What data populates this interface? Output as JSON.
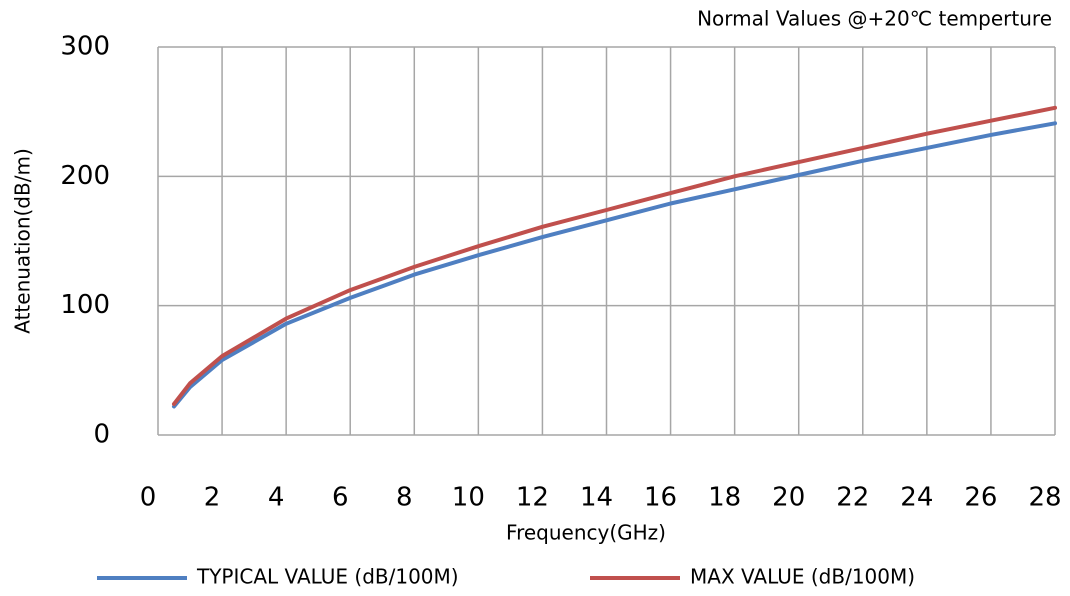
{
  "chart_data": {
    "type": "line",
    "annotation": "Normal Values @+20℃ temperture",
    "x_label": "Frequency(GHz)",
    "y_label": "Attenuation(dB/m)",
    "x": [
      0.5,
      1,
      2,
      4,
      6,
      8,
      10,
      12,
      14,
      16,
      18,
      20,
      22,
      24,
      26,
      28
    ],
    "series": [
      {
        "name": "TYPICAL VALUE (dB/100M)",
        "color": "#4f7fc1",
        "values": [
          22,
          37,
          58,
          86,
          106,
          124,
          139,
          153,
          166,
          179,
          190,
          201,
          212,
          222,
          232,
          241
        ]
      },
      {
        "name": "MAX VALUE (dB/100M)",
        "color": "#c0504d",
        "values": [
          24,
          40,
          61,
          90,
          112,
          130,
          146,
          161,
          174,
          187,
          200,
          211,
          222,
          233,
          243,
          253
        ]
      }
    ],
    "xlim": [
      0,
      28
    ],
    "xticks": [
      0,
      2,
      4,
      6,
      8,
      10,
      12,
      14,
      16,
      18,
      20,
      22,
      24,
      26,
      28
    ],
    "ylim": [
      0,
      300
    ],
    "yticks": [
      0,
      100,
      200,
      300
    ],
    "grid": true,
    "legend": "bottom"
  }
}
